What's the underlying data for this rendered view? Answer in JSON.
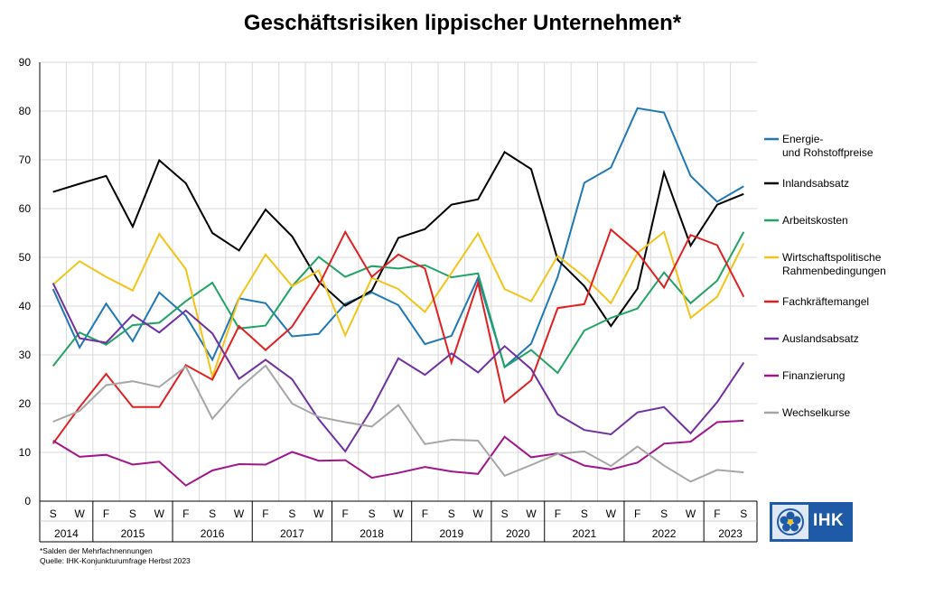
{
  "title": "Geschäftsrisiken lippischer Unternehmen*",
  "footnotes": [
    "*Salden der Mehrfachnennungen",
    "Quelle: IHK-Konjunkturumfrage Herbst 2023"
  ],
  "logo_text": "IHK",
  "chart_data": {
    "type": "line",
    "title": "Geschäftsrisiken lippischer Unternehmen*",
    "x_seasons": [
      "S",
      "W",
      "F",
      "S",
      "W",
      "F",
      "S",
      "W",
      "F",
      "S",
      "W",
      "F",
      "S",
      "W",
      "F",
      "S",
      "W",
      "S",
      "W",
      "F",
      "S",
      "W",
      "F",
      "S",
      "W",
      "F",
      "S"
    ],
    "x_years": [
      {
        "label": "2014",
        "start": 0,
        "end": 1
      },
      {
        "label": "2015",
        "start": 2,
        "end": 4
      },
      {
        "label": "2016",
        "start": 5,
        "end": 7
      },
      {
        "label": "2017",
        "start": 8,
        "end": 10
      },
      {
        "label": "2018",
        "start": 11,
        "end": 13
      },
      {
        "label": "2019",
        "start": 14,
        "end": 16
      },
      {
        "label": "2020",
        "start": 17,
        "end": 18
      },
      {
        "label": "2021",
        "start": 19,
        "end": 21
      },
      {
        "label": "2022",
        "start": 22,
        "end": 24
      },
      {
        "label": "2023",
        "start": 25,
        "end": 26
      }
    ],
    "ylim": [
      0,
      90
    ],
    "yticks": [
      0,
      10,
      20,
      30,
      40,
      50,
      60,
      70,
      80,
      90
    ],
    "grid": true,
    "legend_position": "right",
    "series": [
      {
        "name": "Energie- und Rohstoffpreise",
        "legend_lines": [
          "Energie-",
          "und Rohstoffpreise"
        ],
        "color": "#1f77b4",
        "values": [
          43.5,
          31.5,
          40.5,
          32.8,
          42.8,
          38,
          29,
          41.6,
          40.6,
          33.8,
          34.3,
          40.5,
          42.8,
          40.2,
          32.2,
          33.9,
          45.8,
          27.5,
          32.3,
          46,
          65.3,
          68.4,
          80.6,
          79.7,
          66.7,
          61.4,
          64.6
        ]
      },
      {
        "name": "Inlandsabsatz",
        "legend_lines": [
          "Inlandsabsatz"
        ],
        "color": "#000000",
        "values": [
          63.4,
          65.1,
          66.7,
          56.3,
          69.9,
          65.2,
          55,
          51.4,
          59.8,
          54.3,
          45,
          40.1,
          43.2,
          54,
          55.8,
          60.8,
          61.9,
          71.6,
          68.1,
          49.5,
          44.1,
          35.9,
          43.6,
          67.4,
          52.4,
          60.8,
          63
        ]
      },
      {
        "name": "Arbeitskosten",
        "legend_lines": [
          "Arbeitskosten"
        ],
        "color": "#21a366",
        "values": [
          27.7,
          34.6,
          32.1,
          36.1,
          36.6,
          41,
          44.8,
          35.4,
          36,
          44.1,
          50.1,
          46,
          48.2,
          47.7,
          48.4,
          45.9,
          46.7,
          27.5,
          31,
          26.3,
          35,
          37.6,
          39.5,
          46.9,
          40.6,
          45.2,
          55.2
        ]
      },
      {
        "name": "Wirtschaftspolitische Rahmenbedingungen",
        "legend_lines": [
          "Wirtschaftspolitische",
          "Rahmenbedingungen"
        ],
        "color": "#f2c318",
        "values": [
          44.4,
          49.2,
          46,
          43.2,
          54.8,
          47.6,
          25.5,
          41.6,
          50.6,
          44.1,
          47.3,
          34,
          45.8,
          43.5,
          38.8,
          46.8,
          54.9,
          43.5,
          41,
          50.3,
          46,
          40.6,
          50.9,
          55.2,
          37.6,
          41.9,
          52.9
        ]
      },
      {
        "name": "Fachkräftemangel",
        "legend_lines": [
          "Fachkräftemangel"
        ],
        "color": "#e02020",
        "values": [
          11.8,
          19.3,
          26.1,
          19.3,
          19.3,
          27.9,
          24.9,
          35.9,
          31,
          35.8,
          44.2,
          55.2,
          46,
          50.6,
          47.7,
          28.4,
          44.8,
          20.3,
          24.8,
          39.6,
          40.4,
          55.7,
          51,
          43.8,
          54.6,
          52.5,
          41.9
        ]
      },
      {
        "name": "Auslandsabsatz",
        "legend_lines": [
          "Auslandsabsatz"
        ],
        "color": "#7030a0",
        "values": [
          44.7,
          33.4,
          32.5,
          38.2,
          34.6,
          39.1,
          34.4,
          25.1,
          29,
          25,
          16.8,
          10.2,
          18.9,
          29.3,
          25.9,
          30.3,
          26.4,
          31.8,
          27.1,
          17.8,
          14.6,
          13.7,
          18.2,
          19.3,
          13.9,
          20.3,
          28.4
        ]
      },
      {
        "name": "Finanzierung",
        "legend_lines": [
          "Finanzierung"
        ],
        "color": "#a0158c",
        "values": [
          12.4,
          9.1,
          9.5,
          7.5,
          8.1,
          3.2,
          6.3,
          7.6,
          7.5,
          10.1,
          8.3,
          8.4,
          4.8,
          5.8,
          7,
          6.1,
          5.6,
          13.2,
          9,
          9.8,
          7.3,
          6.5,
          7.9,
          11.8,
          12.2,
          16.2,
          16.5
        ]
      },
      {
        "name": "Wechselkurse",
        "legend_lines": [
          "Wechselkurse"
        ],
        "color": "#a6a6a6",
        "values": [
          16.3,
          18.5,
          23.8,
          24.6,
          23.4,
          27.6,
          16.9,
          23.1,
          27.8,
          20,
          17.3,
          16.2,
          15.3,
          19.7,
          11.7,
          12.6,
          12.4,
          5.2,
          7.4,
          9.7,
          10.2,
          7.2,
          11.2,
          7.3,
          4,
          6.4,
          5.9
        ]
      }
    ]
  }
}
